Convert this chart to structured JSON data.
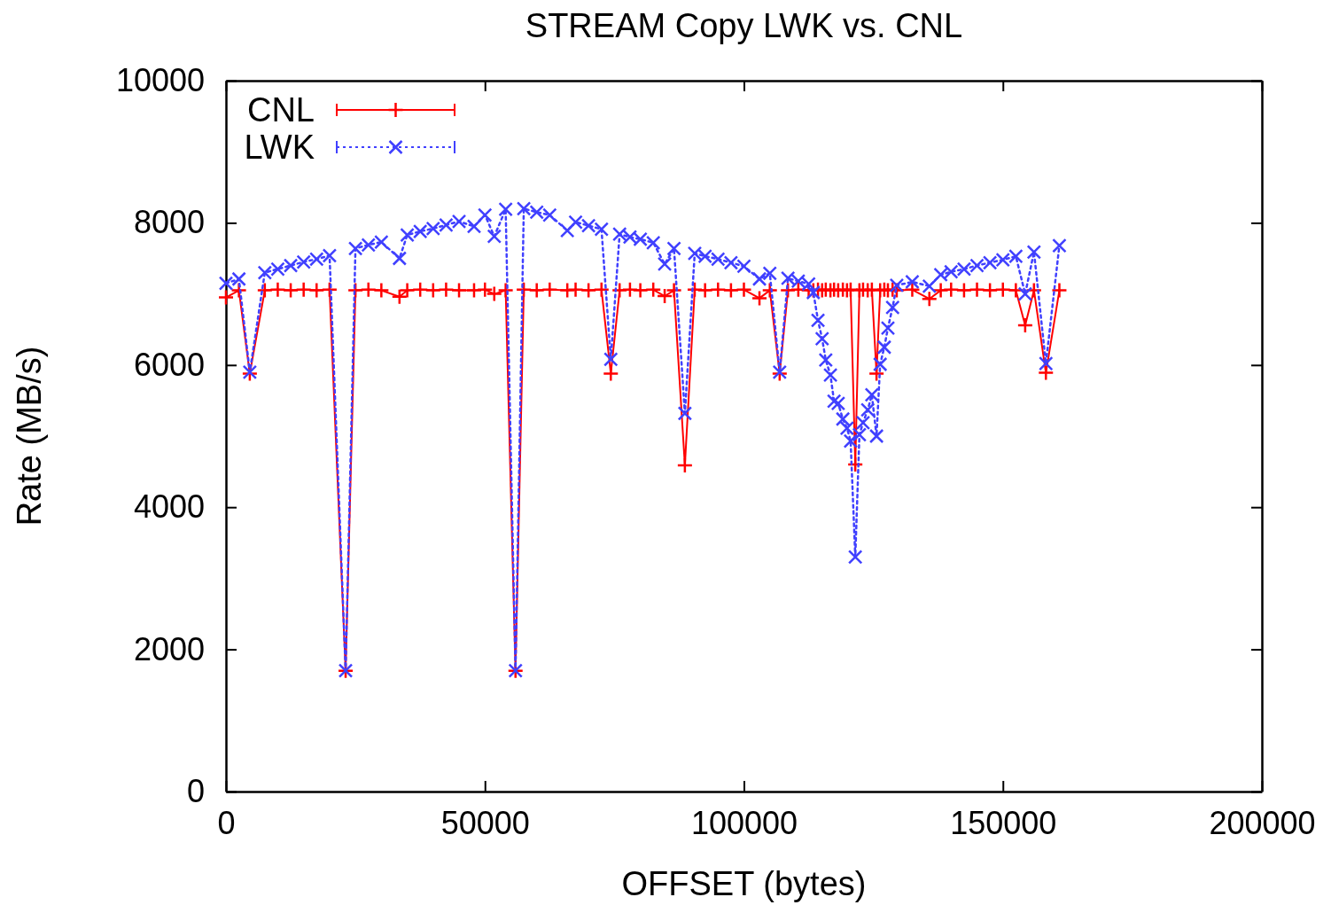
{
  "chart_data": {
    "type": "line",
    "title": "STREAM Copy LWK vs. CNL",
    "xlabel": "OFFSET (bytes)",
    "ylabel": "Rate (MB/s)",
    "x": [
      0,
      2500,
      4600,
      7500,
      10000,
      12500,
      15000,
      17500,
      20000,
      23100,
      25000,
      27500,
      30000,
      33500,
      35000,
      37500,
      40000,
      42500,
      45000,
      47900,
      50000,
      51800,
      54000,
      55900,
      57500,
      60000,
      62500,
      65900,
      67500,
      70000,
      72500,
      74300,
      76000,
      78000,
      80000,
      82500,
      84700,
      86500,
      88600,
      90500,
      92500,
      95000,
      97500,
      100000,
      103000,
      105000,
      106900,
      108500,
      110500,
      112500,
      113400,
      114300,
      115100,
      115800,
      116700,
      117400,
      118200,
      119100,
      119900,
      120600,
      121500,
      122300,
      123000,
      123900,
      124700,
      125600,
      126300,
      127100,
      127800,
      128700,
      129500,
      132500,
      135800,
      138000,
      140000,
      142500,
      145000,
      147500,
      150000,
      152500,
      154300,
      156000,
      158300,
      160900
    ],
    "series": [
      {
        "name": "CNL",
        "color": "#ff0000",
        "marker": "cross",
        "line_style": "solid",
        "values": [
          6950,
          7050,
          5880,
          7050,
          7060,
          7050,
          7060,
          7050,
          7060,
          1700,
          7050,
          7060,
          7050,
          6960,
          7050,
          7060,
          7050,
          7060,
          7050,
          7050,
          7060,
          7000,
          7050,
          1700,
          7060,
          7050,
          7060,
          7050,
          7060,
          7050,
          7060,
          5880,
          7050,
          7060,
          7050,
          7060,
          6970,
          7050,
          4590,
          7060,
          7050,
          7060,
          7050,
          7060,
          6940,
          7050,
          5880,
          7050,
          7060,
          7050,
          7050,
          7060,
          7050,
          7060,
          7050,
          7060,
          7050,
          7060,
          7050,
          7060,
          4600,
          7050,
          7060,
          7050,
          7060,
          5880,
          7050,
          7060,
          7050,
          7060,
          7050,
          7060,
          6930,
          7050,
          7060,
          7050,
          7060,
          7050,
          7060,
          7050,
          6560,
          7050,
          5890,
          7050
        ]
      },
      {
        "name": "LWK",
        "color": "#4040ff",
        "marker": "x",
        "line_style": "dotted",
        "values": [
          7150,
          7210,
          5900,
          7300,
          7350,
          7400,
          7450,
          7490,
          7540,
          1700,
          7640,
          7690,
          7730,
          7500,
          7830,
          7880,
          7920,
          7970,
          8020,
          7950,
          8110,
          7810,
          8190,
          1700,
          8200,
          8150,
          8110,
          7890,
          8010,
          7960,
          7910,
          6080,
          7840,
          7800,
          7770,
          7720,
          7420,
          7640,
          5320,
          7570,
          7530,
          7490,
          7440,
          7390,
          7210,
          7290,
          5900,
          7220,
          7180,
          7140,
          7020,
          6630,
          6370,
          6070,
          5860,
          5490,
          5460,
          5240,
          5110,
          4930,
          3300,
          5020,
          5190,
          5370,
          5580,
          5000,
          6010,
          6250,
          6520,
          6810,
          7120,
          7170,
          7110,
          7270,
          7310,
          7350,
          7400,
          7440,
          7480,
          7530,
          7000,
          7590,
          6020,
          7680
        ]
      }
    ],
    "xlim": [
      0,
      200000
    ],
    "xticks": [
      0,
      50000,
      100000,
      150000,
      200000
    ],
    "ylim": [
      0,
      10000
    ],
    "yticks": [
      0,
      2000,
      4000,
      6000,
      8000,
      10000
    ],
    "legend": "top left"
  }
}
